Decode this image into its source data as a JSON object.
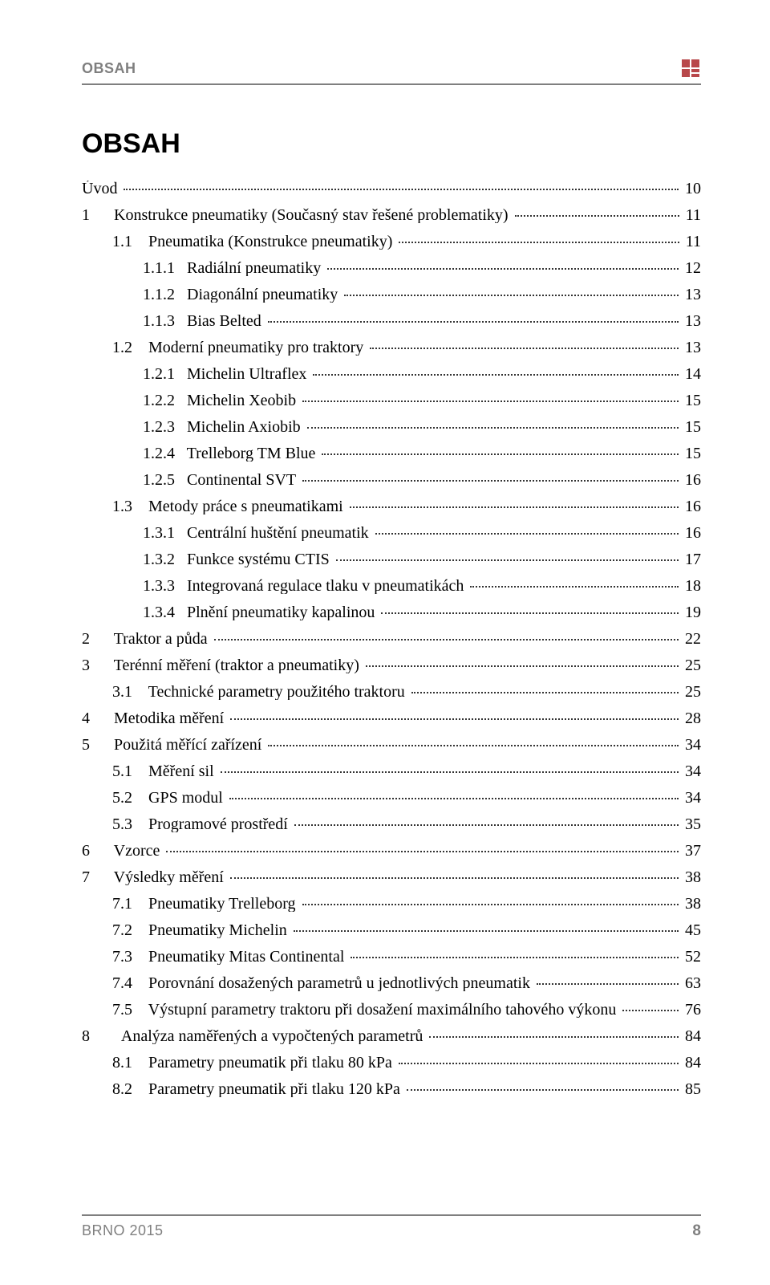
{
  "header": {
    "text": "OBSAH"
  },
  "title": "OBSAH",
  "footer": {
    "left": "BRNO 2015",
    "page": "8"
  },
  "colors": {
    "header_gray": "#7f7f7f",
    "rule_gray": "#7f7f7f",
    "text": "#000000",
    "dots": "#333333",
    "background": "#ffffff"
  },
  "fonts": {
    "heading_family": "Arial",
    "body_family": "Times New Roman",
    "title_size_pt": 26,
    "body_size_pt": 15,
    "header_size_pt": 13
  },
  "toc": [
    {
      "indent": 0,
      "num": "",
      "label": "Úvod",
      "page": "10"
    },
    {
      "indent": 0,
      "num": "1",
      "label": "Konstrukce pneumatiky (Současný stav řešené problematiky)",
      "page": "11"
    },
    {
      "indent": 1,
      "num": "1.1",
      "label": "Pneumatika (Konstrukce pneumatiky)",
      "page": "11"
    },
    {
      "indent": 2,
      "num": "1.1.1",
      "label": "Radiální pneumatiky",
      "page": "12"
    },
    {
      "indent": 2,
      "num": "1.1.2",
      "label": "Diagonální pneumatiky",
      "page": "13"
    },
    {
      "indent": 2,
      "num": "1.1.3",
      "label": "Bias Belted",
      "page": "13"
    },
    {
      "indent": 1,
      "num": "1.2",
      "label": "Moderní pneumatiky pro traktory",
      "page": "13"
    },
    {
      "indent": 2,
      "num": "1.2.1",
      "label": "Michelin Ultraflex",
      "page": "14"
    },
    {
      "indent": 2,
      "num": "1.2.2",
      "label": "Michelin Xeobib",
      "page": "15"
    },
    {
      "indent": 2,
      "num": "1.2.3",
      "label": "Michelin Axiobib",
      "page": "15"
    },
    {
      "indent": 2,
      "num": "1.2.4",
      "label": "Trelleborg TM Blue",
      "page": "15"
    },
    {
      "indent": 2,
      "num": "1.2.5",
      "label": "Continental SVT",
      "page": "16"
    },
    {
      "indent": 1,
      "num": "1.3",
      "label": "Metody práce s pneumatikami",
      "page": "16"
    },
    {
      "indent": 2,
      "num": "1.3.1",
      "label": "Centrální huštění pneumatik",
      "page": "16"
    },
    {
      "indent": 2,
      "num": "1.3.2",
      "label": "Funkce systému CTIS",
      "page": "17"
    },
    {
      "indent": 2,
      "num": "1.3.3",
      "label": "Integrovaná regulace tlaku v pneumatikách",
      "page": "18"
    },
    {
      "indent": 2,
      "num": "1.3.4",
      "label": "Plnění pneumatiky kapalinou",
      "page": "19"
    },
    {
      "indent": 0,
      "num": "2",
      "label": "Traktor a půda",
      "page": "22"
    },
    {
      "indent": 0,
      "num": "3",
      "label": "Terénní měření (traktor a pneumatiky)",
      "page": "25"
    },
    {
      "indent": 1,
      "num": "3.1",
      "label": "Technické parametry použitého traktoru",
      "page": "25"
    },
    {
      "indent": 0,
      "num": "4",
      "label": "Metodika měření",
      "page": "28"
    },
    {
      "indent": 0,
      "num": "5",
      "label": "Použitá měřící zařízení",
      "page": "34"
    },
    {
      "indent": 1,
      "num": "5.1",
      "label": "Měření sil",
      "page": "34"
    },
    {
      "indent": 1,
      "num": "5.2",
      "label": "GPS modul",
      "page": "34"
    },
    {
      "indent": 1,
      "num": "5.3",
      "label": "Programové prostředí",
      "page": "35"
    },
    {
      "indent": 0,
      "num": "6",
      "label": "Vzorce",
      "page": "37"
    },
    {
      "indent": 0,
      "num": "7",
      "label": "Výsledky měření",
      "page": "38"
    },
    {
      "indent": 1,
      "num": "7.1",
      "label": "Pneumatiky Trelleborg",
      "page": "38"
    },
    {
      "indent": 1,
      "num": "7.2",
      "label": "Pneumatiky Michelin",
      "page": "45"
    },
    {
      "indent": 1,
      "num": "7.3",
      "label": "Pneumatiky Mitas Continental",
      "page": "52"
    },
    {
      "indent": 1,
      "num": "7.4",
      "label": "Porovnání dosažených parametrů u jednotlivých pneumatik",
      "page": "63"
    },
    {
      "indent": 1,
      "num": "7.5",
      "label": "Výstupní parametry traktoru při dosažení maximálního tahového výkonu",
      "page": "76"
    },
    {
      "indent": 0,
      "num": "8",
      "label": "  Analýza naměřených a vypočtených parametrů",
      "page": "84"
    },
    {
      "indent": 1,
      "num": "8.1",
      "label": "Parametry pneumatik při tlaku 80 kPa",
      "page": "84"
    },
    {
      "indent": 1,
      "num": "8.2",
      "label": "Parametry pneumatik při tlaku 120 kPa",
      "page": "85"
    }
  ]
}
